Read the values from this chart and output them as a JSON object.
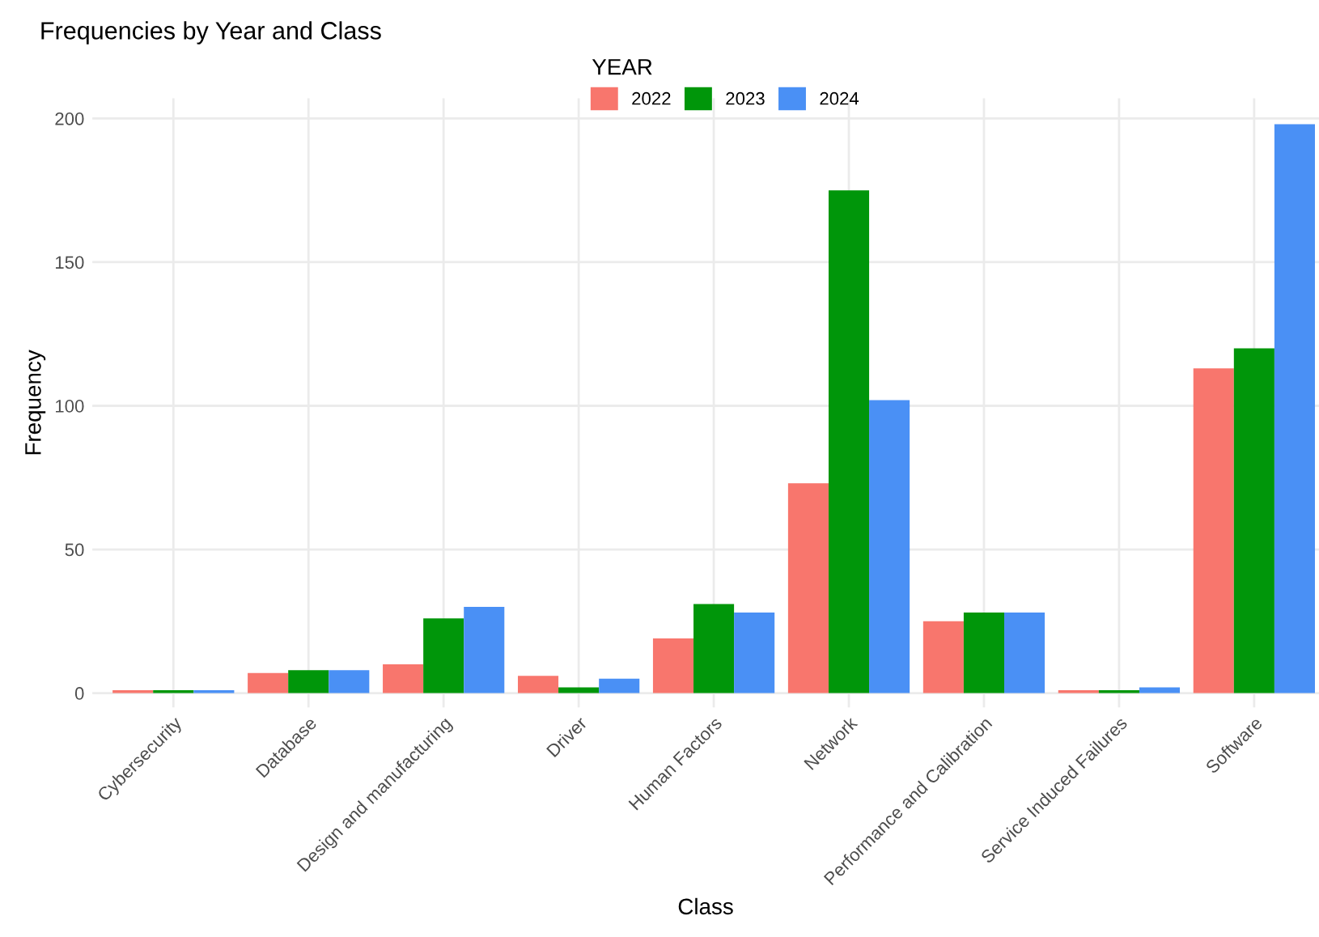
{
  "chart_data": {
    "type": "bar",
    "title": "Frequencies by Year and Class",
    "xlabel": "Class",
    "ylabel": "Frequency",
    "legend_title": "YEAR",
    "legend": "top",
    "categories": [
      "Cybersecurity",
      "Database",
      "Design and manufacturing",
      "Driver",
      "Human Factors",
      "Network",
      "Performance and Calibration",
      "Service Induced Failures",
      "Software"
    ],
    "series": [
      {
        "name": "2022",
        "color": "#f8766d",
        "values": [
          1,
          7,
          10,
          6,
          19,
          73,
          25,
          1,
          113
        ]
      },
      {
        "name": "2023",
        "color": "#00960a",
        "values": [
          1,
          8,
          26,
          2,
          31,
          175,
          28,
          1,
          120
        ]
      },
      {
        "name": "2024",
        "color": "#4a90f5",
        "values": [
          1,
          8,
          30,
          5,
          28,
          102,
          28,
          2,
          198
        ]
      }
    ],
    "ylim": [
      -5,
      207
    ],
    "yticks": [
      0,
      50,
      100,
      150,
      200
    ],
    "grid": true
  }
}
